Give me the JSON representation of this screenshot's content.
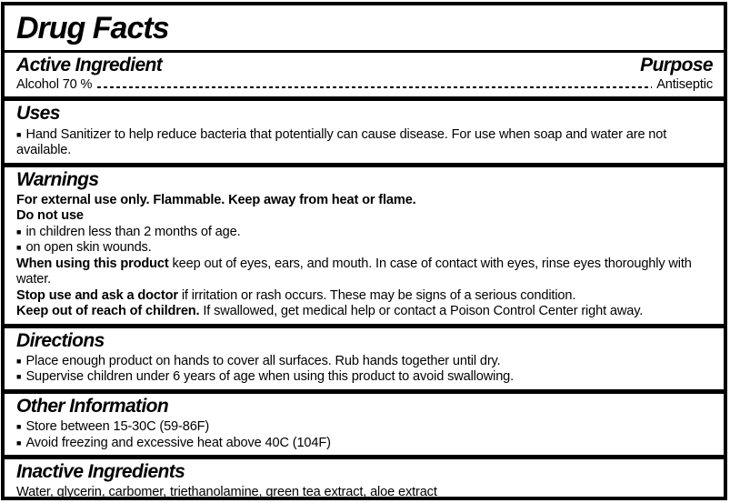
{
  "label": {
    "title": "Drug Facts",
    "bullet_char": "■",
    "active_ingredient": {
      "heading": "Active Ingredient",
      "purpose_heading": "Purpose",
      "ingredient": "Alcohol 70 %",
      "purpose": "Antiseptic"
    },
    "uses": {
      "heading": "Uses",
      "bullets": [
        "Hand Sanitizer to help reduce bacteria that potentially can cause disease. For use when soap and water are not available."
      ]
    },
    "warnings": {
      "heading": "Warnings",
      "lines": [
        {
          "bold": "For external use only. Flammable. Keep away from heat or flame.",
          "text": ""
        },
        {
          "bold": "Do not use",
          "text": ""
        },
        {
          "bold": "",
          "text": "in children less than 2 months of age."
        },
        {
          "bold": "",
          "text": "on open skin wounds."
        },
        {
          "bold": "When using this product",
          "text": "keep out of eyes, ears, and mouth. In case of contact with eyes, rinse eyes thoroughly with water."
        },
        {
          "bold": "Stop use and ask a doctor",
          "text": "if irritation or rash occurs. These may be signs of a serious condition."
        },
        {
          "bold": "Keep out of reach of children.",
          "text": "If swallowed, get medical help or contact a Poison Control Center right away."
        }
      ]
    },
    "directions": {
      "heading": "Directions",
      "bullets": [
        "Place enough product on hands to cover all surfaces. Rub hands together until dry.",
        "Supervise children under 6 years of age when using this product to avoid swallowing."
      ]
    },
    "other_information": {
      "heading": "Other Information",
      "bullets": [
        "Store between 15-30C (59-86F)",
        "Avoid freezing and excessive heat above 40C (104F)"
      ]
    },
    "inactive_ingredients": {
      "heading": "Inactive Ingredients",
      "text": "Water, glycerin, carbomer, triethanolamine, green tea extract, aloe extract"
    }
  }
}
